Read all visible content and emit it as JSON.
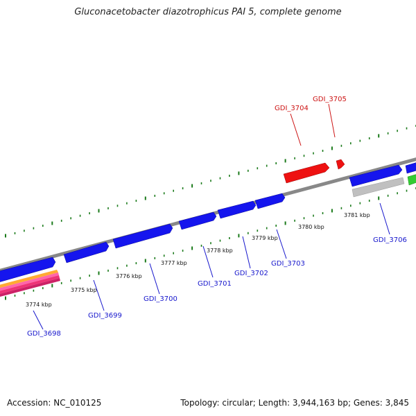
{
  "title": "Gluconacetobacter diazotrophicus PAI 5, complete genome",
  "footer": {
    "accession": "Accession: NC_010125",
    "topology": "Topology: circular; Length: 3,944,163 bp; Genes: 3,845"
  },
  "colors": {
    "backbone": "#888888",
    "forward_gene": "#1515ee",
    "highlight_gene": "#ee1111",
    "pseudo_gene": "#c0c0c0",
    "other_gene": "#33cc33",
    "tick": "#1a7a1a",
    "label_blue": "#1515cc",
    "label_red": "#cc1111"
  },
  "scale": [
    "3774 kbp",
    "3775 kbp",
    "3776 kbp",
    "3777 kbp",
    "3778 kbp",
    "3779 kbp",
    "3780 kbp",
    "3781 kbp"
  ],
  "gene_labels": [
    {
      "name": "GDI_3698",
      "color": "blue"
    },
    {
      "name": "GDI_3699",
      "color": "blue"
    },
    {
      "name": "GDI_3700",
      "color": "blue"
    },
    {
      "name": "GDI_3701",
      "color": "blue"
    },
    {
      "name": "GDI_3702",
      "color": "blue"
    },
    {
      "name": "GDI_3703",
      "color": "blue"
    },
    {
      "name": "GDI_3704",
      "color": "red"
    },
    {
      "name": "GDI_3705",
      "color": "red"
    },
    {
      "name": "GDI_3706",
      "color": "blue"
    }
  ]
}
